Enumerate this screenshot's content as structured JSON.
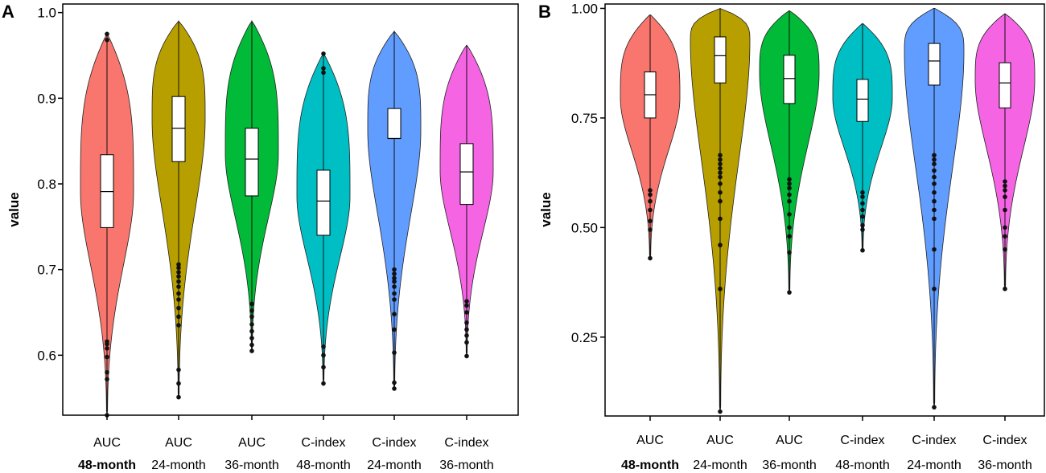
{
  "chart_data": [
    {
      "panel": "A",
      "type": "violin",
      "ylabel": "value",
      "ylim": [
        0.53,
        1.01
      ],
      "yticks": [
        0.6,
        0.7,
        0.8,
        0.9,
        1.0
      ],
      "ytick_labels": [
        "0.6",
        "0.7",
        "0.8",
        "0.9",
        "1.0"
      ],
      "categories": [
        {
          "line1": "AUC",
          "line2": "48-month",
          "bold": true
        },
        {
          "line1": "AUC",
          "line2": "24-month",
          "bold": false
        },
        {
          "line1": "AUC",
          "line2": "36-month",
          "bold": false
        },
        {
          "line1": "C-index",
          "line2": "48-month",
          "bold": false
        },
        {
          "line1": "C-index",
          "line2": "24-month",
          "bold": false
        },
        {
          "line1": "C-index",
          "line2": "36-month",
          "bold": false
        }
      ],
      "series": [
        {
          "name": "AUC 48-month",
          "color": "#F8766D",
          "min": 0.53,
          "max": 0.975,
          "q1": 0.749,
          "median": 0.791,
          "q3": 0.834,
          "mode": 0.79,
          "whisker_low": 0.62,
          "whisker_high": 0.962,
          "outliers": [
            0.53,
            0.572,
            0.58,
            0.598,
            0.608,
            0.613,
            0.616,
            0.975,
            0.968
          ]
        },
        {
          "name": "AUC 24-month",
          "color": "#B79F00",
          "min": 0.55,
          "max": 0.99,
          "q1": 0.826,
          "median": 0.865,
          "q3": 0.902,
          "mode": 0.875,
          "whisker_low": 0.71,
          "whisker_high": 0.99,
          "outliers": [
            0.551,
            0.567,
            0.583,
            0.635,
            0.645,
            0.655,
            0.665,
            0.672,
            0.68,
            0.686,
            0.692,
            0.697,
            0.702,
            0.706
          ]
        },
        {
          "name": "AUC 36-month",
          "color": "#00BA38",
          "min": 0.605,
          "max": 0.99,
          "q1": 0.786,
          "median": 0.829,
          "q3": 0.865,
          "mode": 0.835,
          "whisker_low": 0.668,
          "whisker_high": 0.99,
          "outliers": [
            0.605,
            0.612,
            0.62,
            0.628,
            0.636,
            0.645,
            0.652,
            0.66
          ]
        },
        {
          "name": "C-index 48-month",
          "color": "#00BFC4",
          "min": 0.567,
          "max": 0.952,
          "q1": 0.74,
          "median": 0.78,
          "q3": 0.816,
          "mode": 0.785,
          "whisker_low": 0.625,
          "whisker_high": 0.92,
          "outliers": [
            0.567,
            0.586,
            0.6,
            0.61,
            0.93,
            0.935,
            0.952
          ]
        },
        {
          "name": "C-index 24-month",
          "color": "#619CFF",
          "min": 0.56,
          "max": 0.978,
          "q1": 0.853,
          "median": 0.853,
          "q3": 0.888,
          "mode": 0.862,
          "whisker_low": 0.705,
          "whisker_high": 0.978,
          "outliers": [
            0.561,
            0.568,
            0.603,
            0.63,
            0.648,
            0.665,
            0.672,
            0.68,
            0.686,
            0.69,
            0.695,
            0.7
          ]
        },
        {
          "name": "C-index 36-month",
          "color": "#F564E3",
          "min": 0.599,
          "max": 0.962,
          "q1": 0.776,
          "median": 0.814,
          "q3": 0.847,
          "mode": 0.815,
          "whisker_low": 0.668,
          "whisker_high": 0.962,
          "outliers": [
            0.599,
            0.615,
            0.623,
            0.63,
            0.638,
            0.65,
            0.658,
            0.663
          ]
        }
      ]
    },
    {
      "panel": "B",
      "type": "violin",
      "ylabel": "value",
      "ylim": [
        0.07,
        1.01
      ],
      "yticks": [
        0.25,
        0.5,
        0.75,
        1.0
      ],
      "ytick_labels": [
        "0.25",
        "0.50",
        "0.75",
        "1.00"
      ],
      "categories": [
        {
          "line1": "AUC",
          "line2": "48-month",
          "bold": true
        },
        {
          "line1": "AUC",
          "line2": "24-month",
          "bold": false
        },
        {
          "line1": "AUC",
          "line2": "36-month",
          "bold": false
        },
        {
          "line1": "C-index",
          "line2": "48-month",
          "bold": false
        },
        {
          "line1": "C-index",
          "line2": "24-month",
          "bold": false
        },
        {
          "line1": "C-index",
          "line2": "36-month",
          "bold": false
        }
      ],
      "series": [
        {
          "name": "AUC 48-month",
          "color": "#F8766D",
          "min": 0.43,
          "max": 0.985,
          "q1": 0.75,
          "median": 0.803,
          "q3": 0.855,
          "mode": 0.795,
          "whisker_low": 0.595,
          "whisker_high": 0.985,
          "outliers": [
            0.43,
            0.495,
            0.515,
            0.54,
            0.56,
            0.575,
            0.585
          ]
        },
        {
          "name": "AUC 24-month",
          "color": "#B79F00",
          "min": 0.08,
          "max": 1.0,
          "q1": 0.83,
          "median": 0.892,
          "q3": 0.935,
          "mode": 0.925,
          "whisker_low": 0.675,
          "whisker_high": 1.0,
          "outliers": [
            0.08,
            0.36,
            0.46,
            0.52,
            0.56,
            0.58,
            0.6,
            0.615,
            0.625,
            0.635,
            0.645,
            0.655,
            0.665
          ]
        },
        {
          "name": "AUC 36-month",
          "color": "#00BA38",
          "min": 0.352,
          "max": 0.995,
          "q1": 0.783,
          "median": 0.84,
          "q3": 0.893,
          "mode": 0.85,
          "whisker_low": 0.63,
          "whisker_high": 0.995,
          "outliers": [
            0.352,
            0.443,
            0.48,
            0.5,
            0.53,
            0.56,
            0.575,
            0.59,
            0.6,
            0.61
          ]
        },
        {
          "name": "C-index 48-month",
          "color": "#00BFC4",
          "min": 0.448,
          "max": 0.965,
          "q1": 0.742,
          "median": 0.793,
          "q3": 0.838,
          "mode": 0.795,
          "whisker_low": 0.595,
          "whisker_high": 0.965,
          "outliers": [
            0.448,
            0.495,
            0.505,
            0.525,
            0.54,
            0.555,
            0.57,
            0.58
          ]
        },
        {
          "name": "C-index 24-month",
          "color": "#619CFF",
          "min": 0.09,
          "max": 1.0,
          "q1": 0.825,
          "median": 0.88,
          "q3": 0.92,
          "mode": 0.9,
          "whisker_low": 0.67,
          "whisker_high": 1.0,
          "outliers": [
            0.09,
            0.36,
            0.45,
            0.52,
            0.54,
            0.56,
            0.58,
            0.6,
            0.615,
            0.63,
            0.645,
            0.655,
            0.665
          ]
        },
        {
          "name": "C-index 36-month",
          "color": "#F564E3",
          "min": 0.36,
          "max": 0.988,
          "q1": 0.773,
          "median": 0.83,
          "q3": 0.876,
          "mode": 0.835,
          "whisker_low": 0.63,
          "whisker_high": 0.988,
          "outliers": [
            0.36,
            0.45,
            0.48,
            0.5,
            0.54,
            0.57,
            0.585,
            0.595,
            0.605
          ]
        }
      ]
    }
  ]
}
